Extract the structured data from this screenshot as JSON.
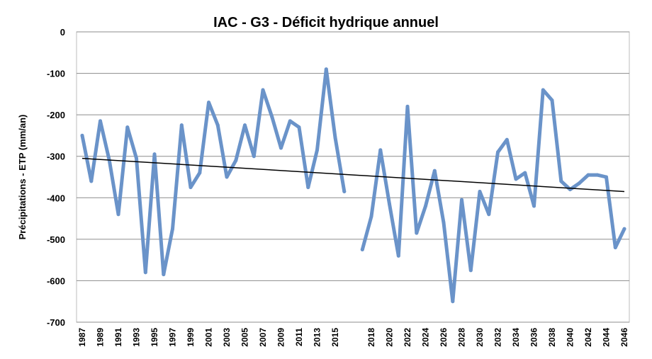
{
  "chart_data": {
    "type": "line",
    "title": "IAC - G3 - Déficit hydrique annuel",
    "xlabel": "",
    "ylabel": "Précipitations - ETP (mm/an)",
    "ylim": [
      -700,
      0
    ],
    "yticks": [
      0,
      -100,
      -200,
      -300,
      -400,
      -500,
      -600,
      -700
    ],
    "ytick_labels": [
      "0",
      "-100",
      "-200",
      "-300",
      "-400",
      "-500",
      "-600",
      "-700"
    ],
    "grid": true,
    "categories": [
      "1987",
      "1988",
      "1989",
      "1990",
      "1991",
      "1992",
      "1993",
      "1994",
      "1995",
      "1996",
      "1997",
      "1998",
      "1999",
      "2000",
      "2001",
      "2002",
      "2003",
      "2004",
      "2005",
      "2006",
      "2007",
      "2008",
      "2009",
      "2010",
      "2011",
      "2012",
      "2013",
      "2014",
      "2015",
      "2016",
      "",
      "2017",
      "2018",
      "2019",
      "2020",
      "2021",
      "2022",
      "2023",
      "2024",
      "2025",
      "2026",
      "2027",
      "2028",
      "2029",
      "2030",
      "2031",
      "2032",
      "2033",
      "2034",
      "2035",
      "2036",
      "2037",
      "2038",
      "2039",
      "2040",
      "2041",
      "2042",
      "2043",
      "2044",
      "2045",
      "2046"
    ],
    "xtick_labels": [
      "1987",
      "1989",
      "1991",
      "1993",
      "1995",
      "1997",
      "1999",
      "2001",
      "2003",
      "2005",
      "2007",
      "2009",
      "2011",
      "2013",
      "2015",
      "2018",
      "2020",
      "2022",
      "2024",
      "2026",
      "2028",
      "2030",
      "2032",
      "2034",
      "2036",
      "2038",
      "2040",
      "2042",
      "2044",
      "2046"
    ],
    "xtick_indices": [
      0,
      2,
      4,
      6,
      8,
      10,
      12,
      14,
      16,
      18,
      20,
      22,
      24,
      26,
      28,
      32,
      34,
      36,
      38,
      40,
      42,
      44,
      46,
      48,
      50,
      52,
      54,
      56,
      58,
      60
    ],
    "series": [
      {
        "color": "#6a93c9",
        "values": [
          -250,
          -360,
          -215,
          -310,
          -440,
          -230,
          -305,
          -580,
          -295,
          -585,
          -475,
          -225,
          -375,
          -340,
          -170,
          -225,
          -350,
          -310,
          -225,
          -300,
          -140,
          -205,
          -280,
          -215,
          -230,
          -375,
          -285,
          -90,
          -255,
          -385,
          null,
          -525,
          -445,
          -285,
          -415,
          -540,
          -180,
          -485,
          -420,
          -335,
          -460,
          -650,
          -405,
          -575,
          -385,
          -440,
          -290,
          -260,
          -355,
          -340,
          -420,
          -140,
          -165,
          -360,
          -380,
          -365,
          -345,
          -345,
          -350,
          -520,
          -475
        ]
      }
    ],
    "trendline": {
      "color": "#000000",
      "start": -305,
      "end": -385
    }
  }
}
